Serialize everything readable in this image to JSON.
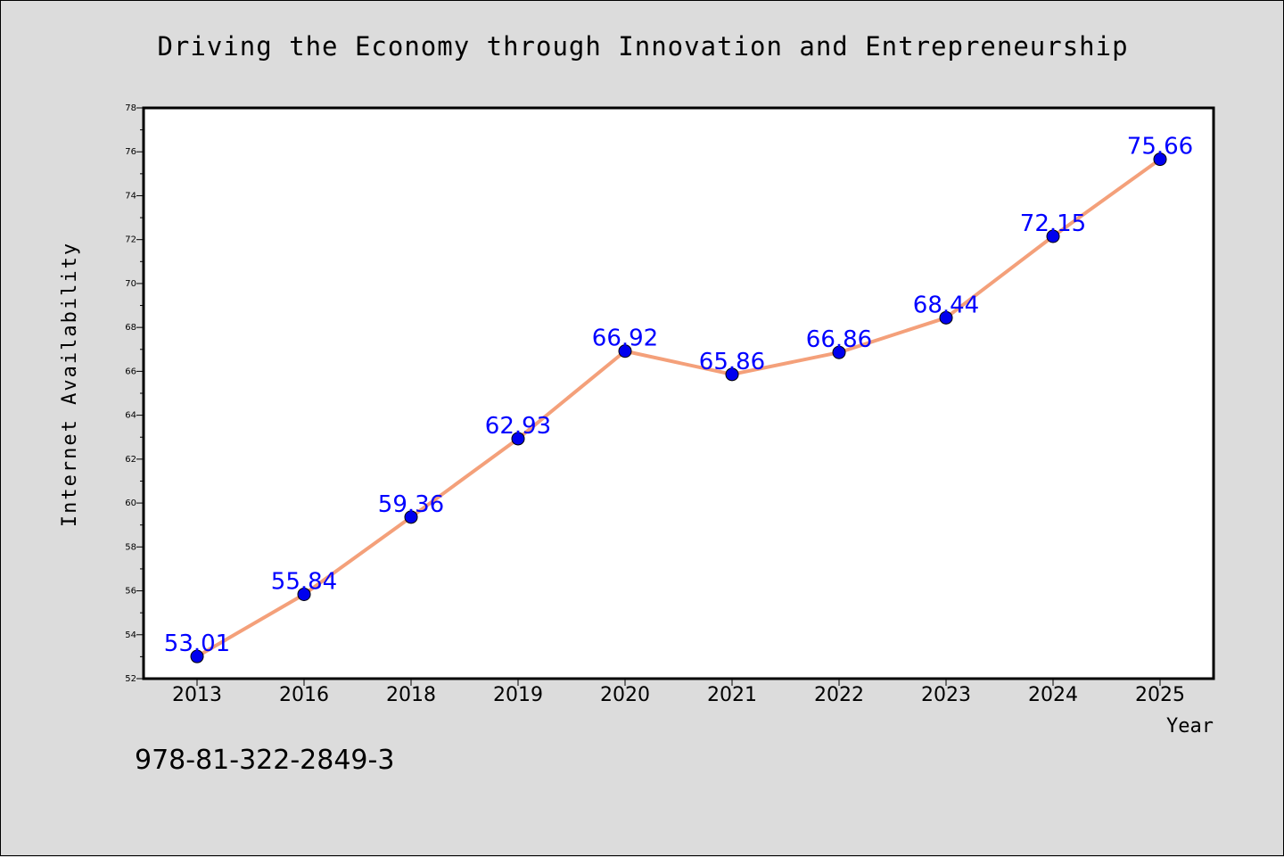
{
  "chart_data": {
    "type": "line",
    "title": "Driving the Economy through Innovation and Entrepreneurship",
    "xlabel": "Year",
    "ylabel": "Internet Availability",
    "categories": [
      "2013",
      "2016",
      "2018",
      "2019",
      "2020",
      "2021",
      "2022",
      "2023",
      "2024",
      "2025"
    ],
    "series": [
      {
        "values": [
          53.01,
          55.84,
          59.36,
          62.93,
          66.92,
          65.86,
          66.86,
          68.44,
          72.15,
          75.66
        ]
      }
    ],
    "data_labels": [
      "53.01",
      "55.84",
      "59.36",
      "62.93",
      "66.92",
      "65.86",
      "66.86",
      "68.44",
      "72.15",
      "75.66"
    ],
    "ylim": [
      52,
      78
    ],
    "yticks": [
      "52",
      "54",
      "56",
      "58",
      "60",
      "62",
      "64",
      "66",
      "68",
      "70",
      "72",
      "74",
      "76",
      "78"
    ],
    "grid": false,
    "legend": "none",
    "line_color": "#f4a07a",
    "marker_color": "#0000ee",
    "label_color": "#0000ff"
  },
  "footer_text": "978-81-322-2849-3"
}
